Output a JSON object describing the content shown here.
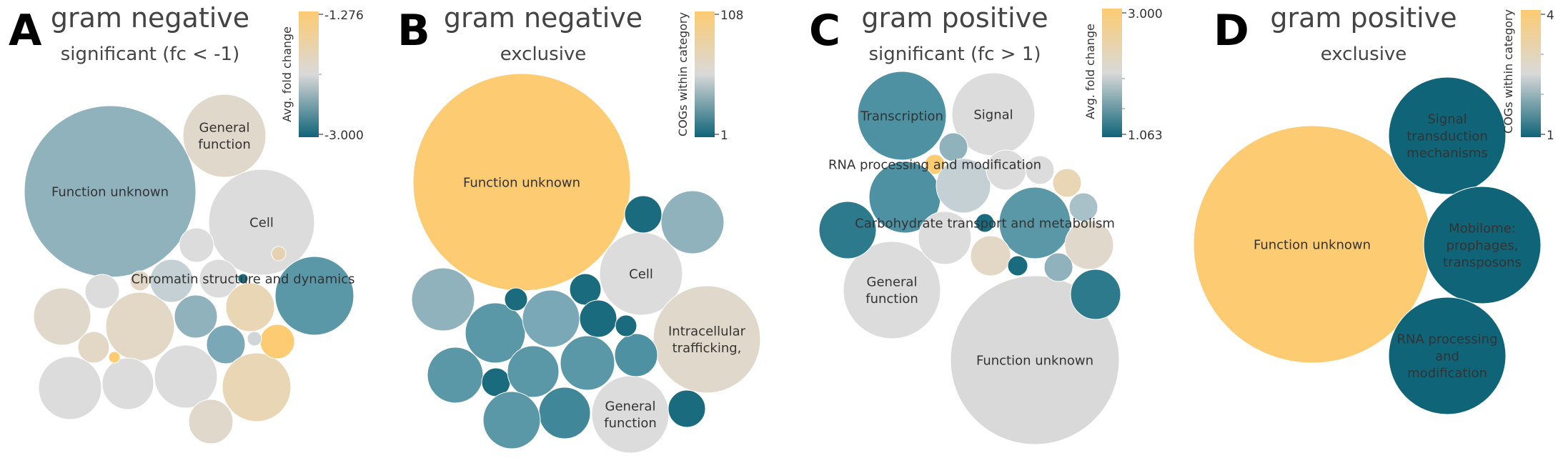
{
  "colors": {
    "low": "#0f6478",
    "mid": "#d9d9d9",
    "high": "#fccb72",
    "tan": "#e3d8c5",
    "text": "#333333",
    "title": "#444444"
  },
  "chart_data": [
    {
      "type": "bubble",
      "panel_letter": "A",
      "title": "gram negative",
      "subtitle": "significant (fc < -1)",
      "colorbar": {
        "label": "Avg. fold change",
        "max_label": "-1.276",
        "min_label": "-3.000"
      },
      "bubbles": [
        {
          "label": "Function unknown",
          "color": "#8fb2bd"
        },
        {
          "label": "General function",
          "color": "#e0d8cb"
        },
        {
          "label": "Cell",
          "color": "#dcdcdc"
        },
        {
          "label": "Chromatin structure and dynamics",
          "color": "#1b6b7f"
        },
        {
          "label": "",
          "color": "#5a98a8"
        },
        {
          "label": "",
          "color": "#e0d8cb"
        },
        {
          "label": "",
          "color": "#dcdcdc"
        },
        {
          "label": "",
          "color": "#e3d8c5"
        },
        {
          "label": "",
          "color": "#dcdcdc"
        },
        {
          "label": "",
          "color": "#e3d8c5"
        },
        {
          "label": "",
          "color": "#c4d0d4"
        },
        {
          "label": "",
          "color": "#dcdcdc"
        },
        {
          "label": "",
          "color": "#e8d6b4"
        },
        {
          "label": "",
          "color": "#8fb2bd"
        },
        {
          "label": "",
          "color": "#7aa8b6"
        },
        {
          "label": "",
          "color": "#e3d8c5"
        },
        {
          "label": "",
          "color": "#dcdcdc"
        },
        {
          "label": "",
          "color": "#dcdcdc"
        },
        {
          "label": "",
          "color": "#dcdcdc"
        },
        {
          "label": "",
          "color": "#e8d6b4"
        },
        {
          "label": "",
          "color": "#fccb72"
        },
        {
          "label": "",
          "color": "#e0d8cb"
        },
        {
          "label": "",
          "color": "#d0d6d8"
        },
        {
          "label": "",
          "color": "#fccb72"
        },
        {
          "label": "",
          "color": "#e6d2b0"
        }
      ]
    },
    {
      "type": "bubble",
      "panel_letter": "B",
      "title": "gram negative",
      "subtitle": "exclusive",
      "colorbar": {
        "label": "COGs within category",
        "max_label": "108",
        "min_label": "1"
      },
      "bubbles": [
        {
          "label": "Function unknown",
          "color": "#fccb72"
        },
        {
          "label": "Cell",
          "color": "#dcdcdc"
        },
        {
          "label": "Intracellular trafficking,",
          "color": "#e0d8cb"
        },
        {
          "label": "General function",
          "color": "#dcdcdc"
        },
        {
          "label": "",
          "color": "#8fb2bd"
        },
        {
          "label": "",
          "color": "#1b6b7f"
        },
        {
          "label": "",
          "color": "#8fb2bd"
        },
        {
          "label": "",
          "color": "#5a98a8"
        },
        {
          "label": "",
          "color": "#1b6b7f"
        },
        {
          "label": "",
          "color": "#7aa8b6"
        },
        {
          "label": "",
          "color": "#1b6b7f"
        },
        {
          "label": "",
          "color": "#1b6b7f"
        },
        {
          "label": "",
          "color": "#5a98a8"
        },
        {
          "label": "",
          "color": "#1b6b7f"
        },
        {
          "label": "",
          "color": "#5a98a8"
        },
        {
          "label": "",
          "color": "#5a98a8"
        },
        {
          "label": "",
          "color": "#3f8799"
        },
        {
          "label": "",
          "color": "#5a98a8"
        },
        {
          "label": "",
          "color": "#4d91a2"
        },
        {
          "label": "",
          "color": "#1b6b7f"
        },
        {
          "label": "",
          "color": "#1b6b7f"
        }
      ]
    },
    {
      "type": "bubble",
      "panel_letter": "C",
      "title": "gram positive",
      "subtitle": "significant (fc > 1)",
      "colorbar": {
        "label": "Avg. fold change",
        "max_label": "3.000",
        "min_label": "1.063"
      },
      "bubbles": [
        {
          "label": "Transcription",
          "color": "#4d91a2"
        },
        {
          "label": "Signal",
          "color": "#dcdcdc"
        },
        {
          "label": "RNA processing and modification",
          "color": "#fccb72"
        },
        {
          "label": "Carbohydrate transport and metabolism",
          "color": "#1b6b7f"
        },
        {
          "label": "General function",
          "color": "#dcdcdc"
        },
        {
          "label": "Function unknown",
          "color": "#d9d9d9"
        },
        {
          "label": "",
          "color": "#8fb2bd"
        },
        {
          "label": "",
          "color": "#4d91a2"
        },
        {
          "label": "",
          "color": "#c4d0d4"
        },
        {
          "label": "",
          "color": "#2e7a8d"
        },
        {
          "label": "",
          "color": "#dcdcdc"
        },
        {
          "label": "",
          "color": "#dcdcdc"
        },
        {
          "label": "",
          "color": "#e8d6b4"
        },
        {
          "label": "",
          "color": "#5a98a8"
        },
        {
          "label": "",
          "color": "#a8c0c7"
        },
        {
          "label": "",
          "color": "#e0d8cb"
        },
        {
          "label": "",
          "color": "#e3d8c5"
        },
        {
          "label": "",
          "color": "#1b6b7f"
        },
        {
          "label": "",
          "color": "#8fb2bd"
        },
        {
          "label": "",
          "color": "#2e7a8d"
        },
        {
          "label": "",
          "color": "#dcdcdc"
        }
      ]
    },
    {
      "type": "bubble",
      "panel_letter": "D",
      "title": "gram positive",
      "subtitle": "exclusive",
      "colorbar": {
        "label": "COGs within category",
        "max_label": "4",
        "min_label": "1"
      },
      "bubbles": [
        {
          "label": "Function unknown",
          "color": "#fccb72"
        },
        {
          "label": "Signal transduction mechanisms",
          "color": "#0f6478"
        },
        {
          "label": "Mobilome: prophages, transposons",
          "color": "#0f6478"
        },
        {
          "label": "RNA processing and modification",
          "color": "#0f6478"
        }
      ]
    }
  ]
}
